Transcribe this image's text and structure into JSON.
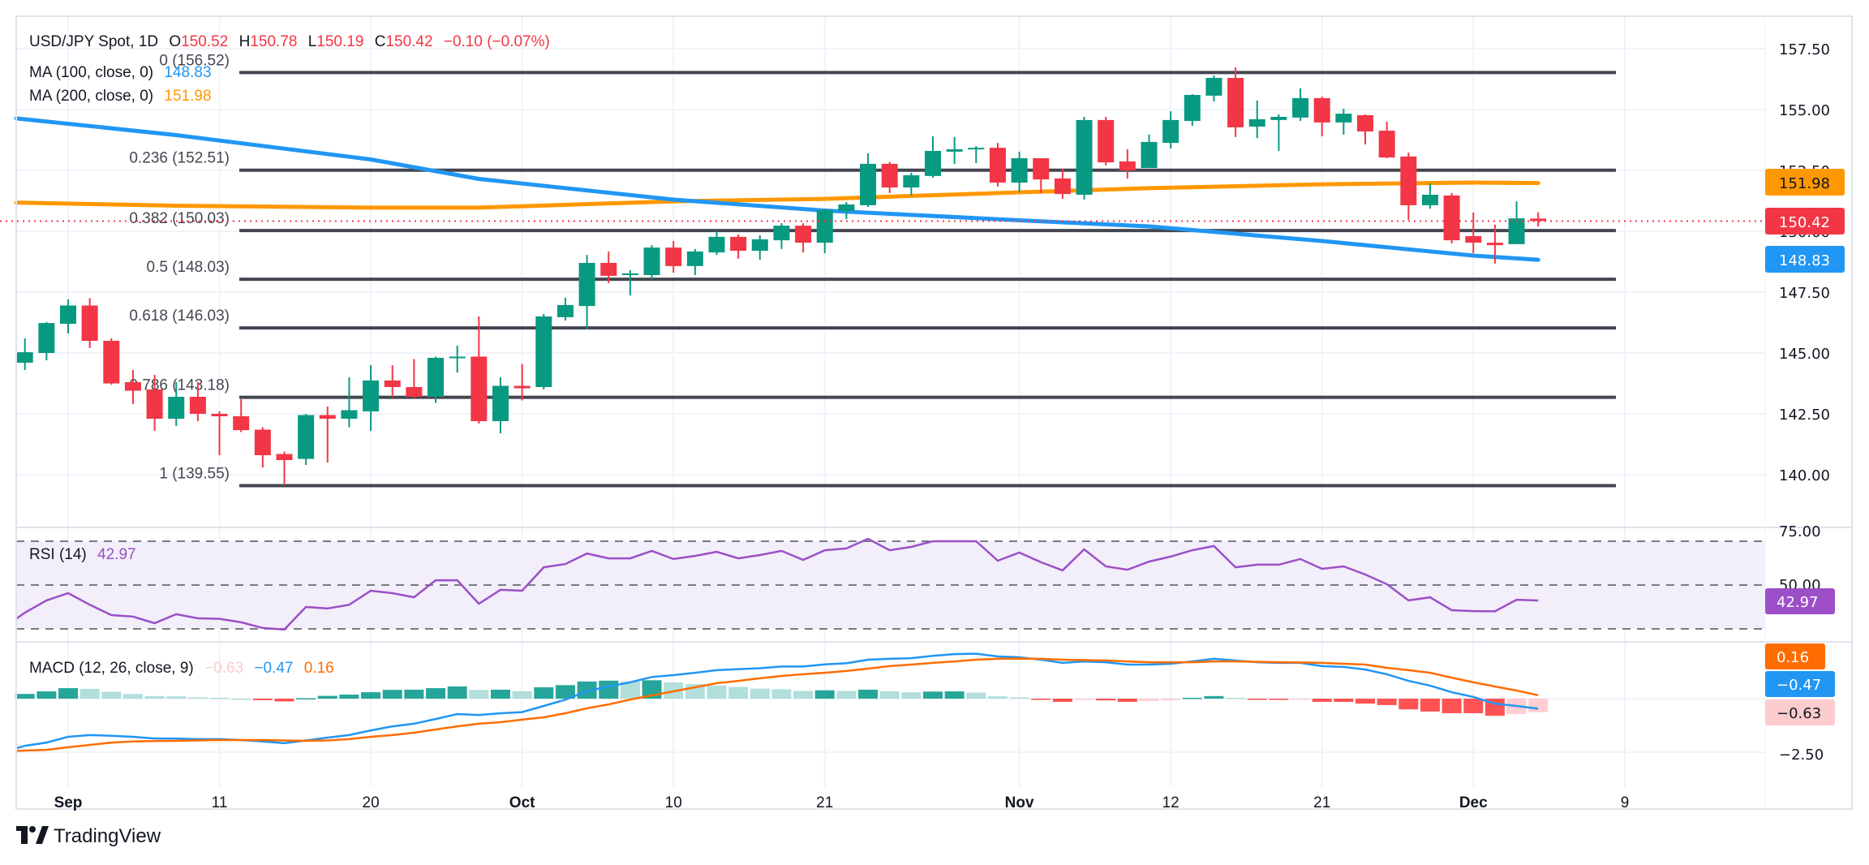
{
  "legend": {
    "symbol": "USD/JPY Spot, 1D",
    "o_label": "O",
    "o": "150.52",
    "h_label": "H",
    "h": "150.78",
    "l_label": "L",
    "l": "150.19",
    "c_label": "C",
    "c": "150.42",
    "change": "−0.10 (−0.07%)",
    "ma100_label": "MA (100, close, 0)",
    "ma100_value": "148.83",
    "ma200_label": "MA (200, close, 0)",
    "ma200_value": "151.98",
    "rsi_label": "RSI (14)",
    "rsi_value": "42.97",
    "macd_label": "MACD (12, 26, close, 9)",
    "macd_hist": "−0.63",
    "macd_value": "−0.47",
    "macd_signal": "0.16"
  },
  "colors": {
    "up": "#089981",
    "down": "#f23645",
    "fib": "#434651",
    "ma100": "#2196f3",
    "ma200": "#ff9800",
    "rsi": "#9c4fc7",
    "macd": "#2196f3",
    "signal": "#ff6d00",
    "hist_up_strong": "#26a69a",
    "hist_up_weak": "#b2dfdb",
    "hist_down_strong": "#ff5252",
    "hist_down_weak": "#ffcdd2"
  },
  "price_axis": {
    "ticks": [
      "157.50",
      "155.00",
      "152.50",
      "150.00",
      "147.50",
      "145.00",
      "142.50",
      "140.00"
    ],
    "badges": {
      "ma200": "151.98",
      "last": "150.42",
      "ma100": "148.83"
    }
  },
  "rsi_axis": {
    "ticks": [
      "75.00",
      "50.00"
    ],
    "badge": "42.97"
  },
  "macd_axis": {
    "ticks": [
      "−2.50"
    ],
    "badges": {
      "signal": "0.16",
      "macd": "−0.47",
      "hist": "−0.63"
    }
  },
  "x_axis": {
    "labels": [
      "Sep",
      "11",
      "20",
      "Oct",
      "10",
      "21",
      "Nov",
      "12",
      "21",
      "Dec",
      "9"
    ]
  },
  "fib_levels": [
    {
      "label": "0 (156.52)",
      "level": 0,
      "price": 156.52
    },
    {
      "label": "0.236 (152.51)",
      "level": 0.236,
      "price": 152.51
    },
    {
      "label": "0.382 (150.03)",
      "level": 0.382,
      "price": 150.03
    },
    {
      "label": "0.5 (148.03)",
      "level": 0.5,
      "price": 148.03
    },
    {
      "label": "0.618 (146.03)",
      "level": 0.618,
      "price": 146.03
    },
    {
      "label": "0.786 (143.18)",
      "level": 0.786,
      "price": 143.18
    },
    {
      "label": "1 (139.55)",
      "level": 1,
      "price": 139.55
    }
  ],
  "branding": {
    "name": "TradingView"
  },
  "chart_data": {
    "type": "candlestick",
    "title": "USD/JPY Spot, 1D",
    "ylim": [
      138.5,
      158.5
    ],
    "grid": true,
    "dates": [
      "2024-08-29",
      "2024-08-30",
      "2024-09-02",
      "2024-09-03",
      "2024-09-04",
      "2024-09-05",
      "2024-09-06",
      "2024-09-09",
      "2024-09-10",
      "2024-09-11",
      "2024-09-12",
      "2024-09-13",
      "2024-09-16",
      "2024-09-17",
      "2024-09-18",
      "2024-09-19",
      "2024-09-20",
      "2024-09-23",
      "2024-09-24",
      "2024-09-25",
      "2024-09-26",
      "2024-09-27",
      "2024-09-30",
      "2024-10-01",
      "2024-10-02",
      "2024-10-03",
      "2024-10-04",
      "2024-10-07",
      "2024-10-08",
      "2024-10-09",
      "2024-10-10",
      "2024-10-11",
      "2024-10-14",
      "2024-10-15",
      "2024-10-16",
      "2024-10-17",
      "2024-10-18",
      "2024-10-21",
      "2024-10-22",
      "2024-10-23",
      "2024-10-24",
      "2024-10-25",
      "2024-10-28",
      "2024-10-29",
      "2024-10-30",
      "2024-10-31",
      "2024-11-01",
      "2024-11-04",
      "2024-11-05",
      "2024-11-06",
      "2024-11-07",
      "2024-11-08",
      "2024-11-11",
      "2024-11-12",
      "2024-11-13",
      "2024-11-14",
      "2024-11-15",
      "2024-11-18",
      "2024-11-19",
      "2024-11-20",
      "2024-11-21",
      "2024-11-22",
      "2024-11-25",
      "2024-11-26",
      "2024-11-27",
      "2024-11-28",
      "2024-11-29",
      "2024-12-02",
      "2024-12-03",
      "2024-12-04",
      "2024-12-05"
    ],
    "ohlc": [
      [
        144.6,
        145.6,
        144.3,
        145.03
      ],
      [
        145.0,
        146.27,
        144.7,
        146.23
      ],
      [
        146.2,
        147.2,
        145.8,
        146.95
      ],
      [
        146.95,
        147.25,
        145.2,
        145.5
      ],
      [
        145.5,
        145.6,
        143.7,
        143.75
      ],
      [
        143.8,
        144.3,
        142.9,
        143.45
      ],
      [
        143.5,
        144.1,
        141.8,
        142.3
      ],
      [
        142.3,
        143.8,
        142.0,
        143.2
      ],
      [
        143.2,
        143.8,
        142.2,
        142.5
      ],
      [
        142.5,
        142.6,
        140.8,
        142.4
      ],
      [
        142.4,
        143.1,
        141.75,
        141.83
      ],
      [
        141.85,
        141.95,
        140.3,
        140.8
      ],
      [
        140.85,
        140.95,
        139.58,
        140.6
      ],
      [
        140.65,
        142.5,
        140.4,
        142.45
      ],
      [
        142.45,
        142.8,
        140.5,
        142.3
      ],
      [
        142.3,
        144.0,
        141.95,
        142.65
      ],
      [
        142.6,
        144.5,
        141.8,
        143.87
      ],
      [
        143.87,
        144.5,
        143.2,
        143.6
      ],
      [
        143.6,
        144.75,
        143.15,
        143.2
      ],
      [
        143.2,
        144.85,
        142.95,
        144.8
      ],
      [
        144.8,
        145.3,
        144.2,
        144.85
      ],
      [
        144.85,
        146.5,
        142.1,
        142.2
      ],
      [
        142.2,
        144.0,
        141.7,
        143.65
      ],
      [
        143.65,
        144.55,
        143.05,
        143.55
      ],
      [
        143.6,
        146.6,
        143.5,
        146.5
      ],
      [
        146.47,
        147.27,
        146.33,
        146.97
      ],
      [
        146.93,
        149.03,
        145.97,
        148.7
      ],
      [
        148.7,
        149.17,
        147.87,
        148.17
      ],
      [
        148.2,
        148.4,
        147.37,
        148.27
      ],
      [
        148.2,
        149.43,
        148.03,
        149.33
      ],
      [
        149.33,
        149.6,
        148.3,
        148.57
      ],
      [
        148.57,
        149.27,
        148.2,
        149.17
      ],
      [
        149.13,
        150.0,
        149.03,
        149.77
      ],
      [
        149.77,
        149.87,
        148.87,
        149.2
      ],
      [
        149.2,
        149.83,
        148.83,
        149.67
      ],
      [
        149.63,
        150.33,
        149.27,
        150.23
      ],
      [
        150.23,
        150.33,
        149.13,
        149.53
      ],
      [
        149.53,
        150.93,
        149.1,
        150.87
      ],
      [
        150.83,
        151.2,
        150.5,
        151.1
      ],
      [
        151.07,
        153.2,
        151.0,
        152.77
      ],
      [
        152.77,
        152.85,
        151.57,
        151.8
      ],
      [
        151.8,
        152.4,
        151.47,
        152.3
      ],
      [
        152.27,
        153.9,
        152.2,
        153.3
      ],
      [
        153.27,
        153.87,
        152.77,
        153.37
      ],
      [
        153.37,
        153.5,
        152.8,
        153.43
      ],
      [
        153.43,
        153.63,
        151.83,
        152.0
      ],
      [
        152.0,
        153.27,
        151.6,
        153.0
      ],
      [
        153.0,
        153.0,
        151.57,
        152.13
      ],
      [
        152.17,
        152.57,
        151.33,
        151.53
      ],
      [
        151.5,
        154.7,
        151.3,
        154.57
      ],
      [
        154.57,
        154.7,
        152.7,
        152.83
      ],
      [
        152.87,
        153.37,
        152.17,
        152.5
      ],
      [
        152.6,
        153.97,
        152.6,
        153.67
      ],
      [
        153.63,
        154.93,
        153.4,
        154.57
      ],
      [
        154.53,
        155.63,
        154.33,
        155.6
      ],
      [
        155.57,
        156.4,
        155.33,
        156.3
      ],
      [
        156.3,
        156.73,
        153.87,
        154.27
      ],
      [
        154.3,
        155.37,
        153.83,
        154.6
      ],
      [
        154.57,
        154.8,
        153.3,
        154.7
      ],
      [
        154.67,
        155.87,
        154.53,
        155.47
      ],
      [
        155.47,
        155.53,
        153.9,
        154.47
      ],
      [
        154.47,
        155.03,
        153.97,
        154.83
      ],
      [
        154.77,
        154.8,
        153.57,
        154.1
      ],
      [
        154.13,
        154.5,
        153.0,
        153.03
      ],
      [
        153.07,
        153.23,
        150.47,
        151.07
      ],
      [
        151.07,
        151.97,
        150.93,
        151.5
      ],
      [
        151.47,
        151.57,
        149.5,
        149.63
      ],
      [
        149.8,
        150.77,
        149.1,
        149.53
      ],
      [
        149.53,
        150.27,
        148.67,
        149.43
      ],
      [
        149.47,
        151.23,
        149.47,
        150.53
      ],
      [
        150.52,
        150.78,
        150.19,
        150.42
      ]
    ],
    "ma100": [
      [
        "2024-08-29",
        154.6
      ],
      [
        "2024-09-09",
        153.95
      ],
      [
        "2024-09-20",
        152.95
      ],
      [
        "2024-09-27",
        152.15
      ],
      [
        "2024-10-10",
        151.3
      ],
      [
        "2024-10-21",
        150.85
      ],
      [
        "2024-11-01",
        150.45
      ],
      [
        "2024-11-11",
        150.2
      ],
      [
        "2024-11-21",
        149.6
      ],
      [
        "2024-12-02",
        149.0
      ],
      [
        "2024-12-05",
        148.83
      ]
    ],
    "ma200": [
      [
        "2024-08-29",
        151.17
      ],
      [
        "2024-09-09",
        151.05
      ],
      [
        "2024-09-20",
        150.97
      ],
      [
        "2024-09-27",
        150.97
      ],
      [
        "2024-10-10",
        151.23
      ],
      [
        "2024-10-21",
        151.33
      ],
      [
        "2024-11-01",
        151.6
      ],
      [
        "2024-11-11",
        151.77
      ],
      [
        "2024-11-21",
        151.93
      ],
      [
        "2024-12-02",
        152.0
      ],
      [
        "2024-12-05",
        151.98
      ]
    ],
    "rsi": {
      "ylim": [
        25,
        75
      ],
      "bands": [
        70,
        50,
        30
      ],
      "values": [
        37.4,
        43,
        46.3,
        41,
        36.3,
        35.6,
        32.6,
        36.7,
        34.8,
        34.6,
        33,
        30.4,
        29.7,
        40,
        39.3,
        41,
        47.4,
        46.3,
        44.4,
        52.2,
        52.2,
        41.5,
        47.8,
        47.4,
        58.1,
        59.6,
        64.4,
        62.2,
        62.2,
        65.6,
        61.9,
        63.3,
        65.2,
        62.2,
        63.7,
        65.6,
        61.5,
        65.9,
        66.7,
        71.1,
        65.9,
        67.4,
        70,
        70,
        70,
        61.1,
        64.8,
        60.4,
        56.7,
        66.3,
        58.5,
        57,
        60.7,
        63,
        65.9,
        67.8,
        58.1,
        59.3,
        59.3,
        61.9,
        57.4,
        58.5,
        54.8,
        50.4,
        43,
        44.4,
        38.5,
        38.1,
        38,
        43.3,
        42.97
      ]
    },
    "macd": {
      "ylim": [
        -2.5,
        2.5
      ],
      "macd": [
        -2.2,
        -2.05,
        -1.78,
        -1.7,
        -1.73,
        -1.78,
        -1.86,
        -1.86,
        -1.89,
        -1.89,
        -1.93,
        -2.0,
        -2.08,
        -1.95,
        -1.82,
        -1.7,
        -1.48,
        -1.29,
        -1.17,
        -0.95,
        -0.72,
        -0.76,
        -0.68,
        -0.63,
        -0.34,
        -0.05,
        0.35,
        0.57,
        0.76,
        1.01,
        1.1,
        1.21,
        1.33,
        1.38,
        1.42,
        1.5,
        1.5,
        1.6,
        1.65,
        1.82,
        1.86,
        1.89,
        2.0,
        2.08,
        2.1,
        1.97,
        1.93,
        1.82,
        1.67,
        1.74,
        1.7,
        1.59,
        1.59,
        1.63,
        1.74,
        1.86,
        1.78,
        1.7,
        1.67,
        1.67,
        1.52,
        1.48,
        1.36,
        1.14,
        0.83,
        0.61,
        0.3,
        0.08,
        -0.23,
        -0.34,
        -0.47
      ],
      "signal": [
        -2.42,
        -2.39,
        -2.27,
        -2.16,
        -2.05,
        -2.0,
        -1.98,
        -1.97,
        -1.95,
        -1.93,
        -1.93,
        -1.93,
        -1.95,
        -1.97,
        -1.95,
        -1.89,
        -1.78,
        -1.7,
        -1.59,
        -1.44,
        -1.29,
        -1.17,
        -1.1,
        -0.98,
        -0.87,
        -0.68,
        -0.45,
        -0.27,
        -0.04,
        0.15,
        0.34,
        0.53,
        0.72,
        0.83,
        0.95,
        1.06,
        1.14,
        1.21,
        1.29,
        1.4,
        1.52,
        1.59,
        1.67,
        1.74,
        1.82,
        1.86,
        1.87,
        1.86,
        1.82,
        1.8,
        1.78,
        1.74,
        1.7,
        1.7,
        1.7,
        1.74,
        1.74,
        1.72,
        1.7,
        1.69,
        1.67,
        1.63,
        1.59,
        1.44,
        1.33,
        1.21,
        0.98,
        0.76,
        0.57,
        0.38,
        0.16
      ]
    }
  }
}
